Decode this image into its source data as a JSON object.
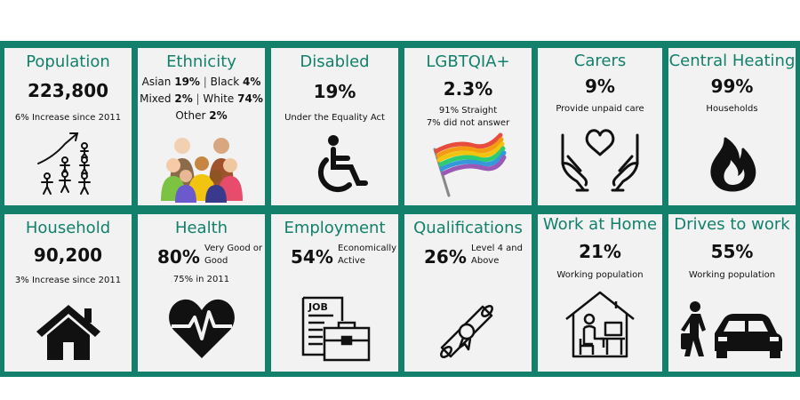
{
  "colors": {
    "accent": "#13806b",
    "card": "#f2f2f2",
    "text": "#111111"
  },
  "cards": {
    "population": {
      "title": "Population",
      "value": "223,800",
      "note": "6% Increase since 2011",
      "icon": "population-growth-icon"
    },
    "ethnicity": {
      "title": "Ethnicity",
      "asian_label": "Asian",
      "asian_value": "19%",
      "black_label": "Black",
      "black_value": "4%",
      "mixed_label": "Mixed",
      "mixed_value": "2%",
      "white_label": "White",
      "white_value": "74%",
      "other_label": "Other",
      "other_value": "2%",
      "separator": "|",
      "icon": "diverse-people-icon"
    },
    "disabled": {
      "title": "Disabled",
      "value": "19%",
      "note": "Under the Equality Act",
      "icon": "wheelchair-icon"
    },
    "lgbtqia": {
      "title": "LGBTQIA+",
      "value": "2.3%",
      "note1": "91% Straight",
      "note2": "7% did not answer",
      "icon": "rainbow-flag-icon"
    },
    "carers": {
      "title": "Carers",
      "value": "9%",
      "note": "Provide unpaid care",
      "icon": "caring-hands-icon"
    },
    "central_heating": {
      "title": "Central Heating",
      "value": "99%",
      "note": "Households",
      "icon": "flame-icon"
    },
    "household": {
      "title": "Household",
      "value": "90,200",
      "note": "3% Increase since 2011",
      "icon": "house-icon"
    },
    "health": {
      "title": "Health",
      "value": "80%",
      "side1": "Very Good or",
      "side2": "Good",
      "note": "75% in 2011",
      "icon": "heartbeat-icon"
    },
    "employment": {
      "title": "Employment",
      "value": "54%",
      "side1": "Economically",
      "side2": "Active",
      "icon": "job-briefcase-icon",
      "icon_text": "JOB"
    },
    "qualifications": {
      "title": "Qualifications",
      "value": "26%",
      "side1": "Level 4 and",
      "side2": "Above",
      "icon": "diploma-icon"
    },
    "work_at_home": {
      "title": "Work at Home",
      "value": "21%",
      "note": "Working population",
      "icon": "home-office-icon"
    },
    "drives_to_work": {
      "title": "Drives to work",
      "value": "55%",
      "note": "Working population",
      "icon": "commuter-car-icon"
    }
  }
}
